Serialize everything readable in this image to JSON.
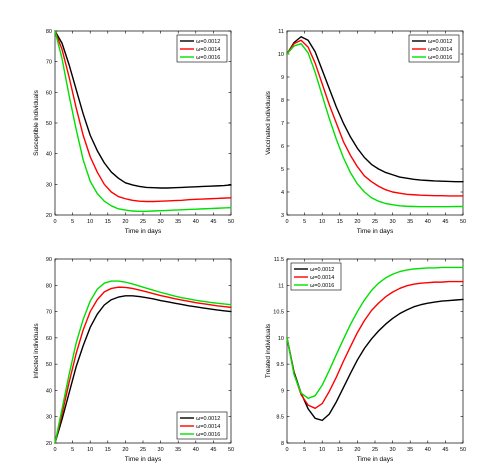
{
  "chart_data": [
    {
      "type": "line",
      "xlabel": "Time in days",
      "ylabel": "Susceptible individuals",
      "xlim": [
        0,
        50
      ],
      "ylim": [
        20,
        80
      ],
      "xticks": [
        0,
        5,
        10,
        15,
        20,
        25,
        30,
        35,
        40,
        45,
        50
      ],
      "yticks": [
        20,
        30,
        40,
        50,
        60,
        70,
        80
      ],
      "legend_position": "top-right",
      "x": [
        0,
        2,
        4,
        6,
        8,
        10,
        12,
        14,
        16,
        18,
        20,
        22,
        24,
        26,
        28,
        30,
        32,
        34,
        36,
        38,
        40,
        42,
        44,
        46,
        48,
        50
      ],
      "series": [
        {
          "name": "ω=0.0012",
          "color": "#000000",
          "values": [
            80,
            76,
            69,
            61,
            53,
            46,
            41,
            37,
            34,
            32,
            30.5,
            29.8,
            29.3,
            29.0,
            28.9,
            28.8,
            28.8,
            28.9,
            29.0,
            29.1,
            29.2,
            29.3,
            29.4,
            29.5,
            29.6,
            29.8
          ]
        },
        {
          "name": "ω=0.0014",
          "color": "#ff0000",
          "values": [
            80,
            74,
            65,
            55,
            46,
            39,
            34,
            30,
            27.5,
            26,
            25.3,
            24.8,
            24.5,
            24.4,
            24.4,
            24.5,
            24.6,
            24.7,
            24.8,
            25.0,
            25.1,
            25.2,
            25.3,
            25.4,
            25.5,
            25.6
          ]
        },
        {
          "name": "ω=0.0016",
          "color": "#00e000",
          "values": [
            80,
            71,
            59,
            48,
            38,
            31,
            27,
            24.5,
            23,
            22,
            21.6,
            21.3,
            21.2,
            21.2,
            21.3,
            21.4,
            21.5,
            21.6,
            21.7,
            21.8,
            21.9,
            22.0,
            22.1,
            22.2,
            22.3,
            22.4
          ]
        }
      ]
    },
    {
      "type": "line",
      "xlabel": "Time in days",
      "ylabel": "Vaccinated individuals",
      "xlim": [
        0,
        50
      ],
      "ylim": [
        3,
        11
      ],
      "xticks": [
        0,
        5,
        10,
        15,
        20,
        25,
        30,
        35,
        40,
        45,
        50
      ],
      "yticks": [
        3,
        4,
        5,
        6,
        7,
        8,
        9,
        10,
        11
      ],
      "legend_position": "top-right",
      "x": [
        0,
        2,
        4,
        6,
        8,
        10,
        12,
        14,
        16,
        18,
        20,
        22,
        24,
        26,
        28,
        30,
        32,
        34,
        36,
        38,
        40,
        42,
        44,
        46,
        48,
        50
      ],
      "series": [
        {
          "name": "ω=0.0012",
          "color": "#000000",
          "values": [
            10,
            10.5,
            10.75,
            10.6,
            10.1,
            9.3,
            8.5,
            7.7,
            7.0,
            6.4,
            5.9,
            5.5,
            5.2,
            5.0,
            4.85,
            4.75,
            4.65,
            4.6,
            4.55,
            4.52,
            4.5,
            4.48,
            4.47,
            4.46,
            4.45,
            4.45
          ]
        },
        {
          "name": "ω=0.0014",
          "color": "#ff0000",
          "values": [
            10,
            10.45,
            10.6,
            10.3,
            9.6,
            8.7,
            7.8,
            7.0,
            6.2,
            5.6,
            5.1,
            4.7,
            4.45,
            4.25,
            4.1,
            4.0,
            3.95,
            3.9,
            3.88,
            3.86,
            3.85,
            3.84,
            3.84,
            3.83,
            3.83,
            3.83
          ]
        },
        {
          "name": "ω=0.0016",
          "color": "#00e000",
          "values": [
            10,
            10.35,
            10.45,
            10.05,
            9.2,
            8.2,
            7.2,
            6.3,
            5.5,
            4.85,
            4.35,
            4.0,
            3.75,
            3.6,
            3.5,
            3.45,
            3.4,
            3.38,
            3.37,
            3.36,
            3.36,
            3.36,
            3.36,
            3.36,
            3.37,
            3.37
          ]
        }
      ]
    },
    {
      "type": "line",
      "xlabel": "Time in days",
      "ylabel": "Infected individuals",
      "xlim": [
        0,
        50
      ],
      "ylim": [
        20,
        90
      ],
      "xticks": [
        0,
        5,
        10,
        15,
        20,
        25,
        30,
        35,
        40,
        45,
        50
      ],
      "yticks": [
        20,
        30,
        40,
        50,
        60,
        70,
        80,
        90
      ],
      "legend_position": "bottom-right",
      "x": [
        0,
        2,
        4,
        6,
        8,
        10,
        12,
        14,
        16,
        18,
        20,
        22,
        24,
        26,
        28,
        30,
        32,
        34,
        36,
        38,
        40,
        42,
        44,
        46,
        48,
        50
      ],
      "series": [
        {
          "name": "ω=0.0012",
          "color": "#000000",
          "values": [
            20,
            29,
            39,
            49,
            57,
            64,
            69,
            72.5,
            74.5,
            75.5,
            76,
            76,
            75.7,
            75.3,
            74.8,
            74.2,
            73.7,
            73.2,
            72.7,
            72.2,
            71.8,
            71.4,
            71.0,
            70.6,
            70.3,
            70.0
          ]
        },
        {
          "name": "ω=0.0014",
          "color": "#ff0000",
          "values": [
            20,
            31,
            43,
            54,
            63,
            70,
            74.5,
            77.5,
            78.8,
            79.3,
            79.2,
            78.8,
            78.2,
            77.5,
            76.8,
            76.1,
            75.5,
            74.9,
            74.4,
            73.9,
            73.4,
            73.0,
            72.6,
            72.2,
            71.9,
            71.6
          ]
        },
        {
          "name": "ω=0.0016",
          "color": "#00e000",
          "values": [
            20,
            33,
            46,
            58,
            67,
            74,
            78.5,
            80.8,
            81.6,
            81.6,
            81.2,
            80.5,
            79.7,
            78.9,
            78.1,
            77.3,
            76.6,
            75.9,
            75.3,
            74.8,
            74.3,
            73.9,
            73.5,
            73.2,
            72.9,
            72.6
          ]
        }
      ]
    },
    {
      "type": "line",
      "xlabel": "Time in days",
      "ylabel": "Treated individuals",
      "xlim": [
        0,
        50
      ],
      "ylim": [
        8,
        11.5
      ],
      "xticks": [
        0,
        5,
        10,
        15,
        20,
        25,
        30,
        35,
        40,
        45,
        50
      ],
      "yticks": [
        8,
        8.5,
        9,
        9.5,
        10,
        10.5,
        11,
        11.5
      ],
      "legend_position": "top-left",
      "x": [
        0,
        2,
        4,
        6,
        8,
        10,
        12,
        14,
        16,
        18,
        20,
        22,
        24,
        26,
        28,
        30,
        32,
        34,
        36,
        38,
        40,
        42,
        44,
        46,
        48,
        50
      ],
      "series": [
        {
          "name": "ω=0.0012",
          "color": "#000000",
          "values": [
            10,
            9.35,
            8.95,
            8.65,
            8.47,
            8.43,
            8.55,
            8.78,
            9.05,
            9.32,
            9.58,
            9.8,
            9.98,
            10.13,
            10.26,
            10.37,
            10.46,
            10.53,
            10.59,
            10.63,
            10.66,
            10.68,
            10.7,
            10.71,
            10.72,
            10.73
          ]
        },
        {
          "name": "ω=0.0014",
          "color": "#ff0000",
          "values": [
            10,
            9.32,
            8.92,
            8.72,
            8.66,
            8.75,
            8.98,
            9.25,
            9.55,
            9.83,
            10.1,
            10.33,
            10.52,
            10.66,
            10.78,
            10.87,
            10.94,
            10.99,
            11.02,
            11.04,
            11.05,
            11.06,
            11.06,
            11.07,
            11.07,
            11.07
          ]
        },
        {
          "name": "ω=0.0016",
          "color": "#00e000",
          "values": [
            10,
            9.3,
            8.95,
            8.85,
            8.9,
            9.1,
            9.38,
            9.68,
            9.97,
            10.25,
            10.5,
            10.72,
            10.9,
            11.04,
            11.14,
            11.21,
            11.26,
            11.29,
            11.31,
            11.32,
            11.33,
            11.33,
            11.34,
            11.34,
            11.34,
            11.34
          ]
        }
      ]
    }
  ]
}
